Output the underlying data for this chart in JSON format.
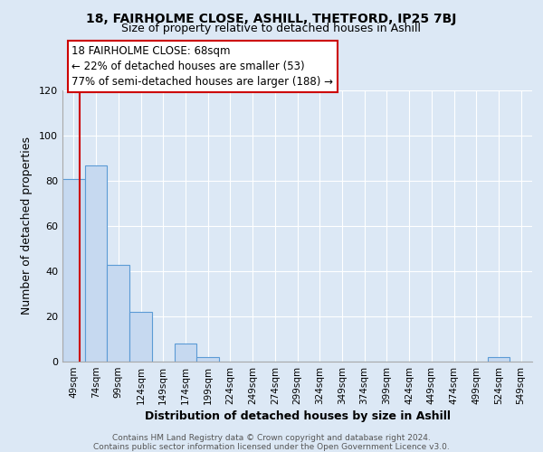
{
  "title1": "18, FAIRHOLME CLOSE, ASHILL, THETFORD, IP25 7BJ",
  "title2": "Size of property relative to detached houses in Ashill",
  "xlabel": "Distribution of detached houses by size in Ashill",
  "ylabel": "Number of detached properties",
  "bar_labels": [
    "49sqm",
    "74sqm",
    "99sqm",
    "124sqm",
    "149sqm",
    "174sqm",
    "199sqm",
    "224sqm",
    "249sqm",
    "274sqm",
    "299sqm",
    "324sqm",
    "349sqm",
    "374sqm",
    "399sqm",
    "424sqm",
    "449sqm",
    "474sqm",
    "499sqm",
    "524sqm",
    "549sqm"
  ],
  "bar_values": [
    81,
    87,
    43,
    22,
    0,
    8,
    2,
    0,
    0,
    0,
    0,
    0,
    0,
    0,
    0,
    0,
    0,
    0,
    0,
    2,
    0
  ],
  "bar_color": "#c6d9f0",
  "bar_edge_color": "#5b9bd5",
  "ylim": [
    0,
    120
  ],
  "yticks": [
    0,
    20,
    40,
    60,
    80,
    100,
    120
  ],
  "annotation_title": "18 FAIRHOLME CLOSE: 68sqm",
  "annotation_line1": "← 22% of detached houses are smaller (53)",
  "annotation_line2": "77% of semi-detached houses are larger (188) →",
  "box_color": "#ffffff",
  "box_edge_color": "#cc0000",
  "footer1": "Contains HM Land Registry data © Crown copyright and database right 2024.",
  "footer2": "Contains public sector information licensed under the Open Government Licence v3.0.",
  "background_color": "#dce8f5",
  "plot_bg_color": "#dce8f5",
  "grid_color": "#ffffff",
  "spine_color": "#aaaaaa"
}
